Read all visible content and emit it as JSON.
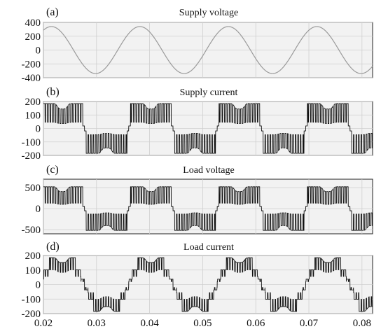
{
  "chart_data": [
    {
      "type": "line",
      "panel_label": "(a)",
      "title": "Supply voltage",
      "xlabel": "",
      "ylabel": "",
      "xlim": [
        0.02,
        0.082
      ],
      "ylim": [
        -400,
        400
      ],
      "yticks": [
        400,
        200,
        0,
        -200,
        -400
      ],
      "grid": true,
      "waveform": "sine",
      "amplitude": 340,
      "frequency_hz": 60,
      "phase_peak_at": 0.0215,
      "color": "#9a9a9a"
    },
    {
      "type": "line",
      "panel_label": "(b)",
      "title": "Supply current",
      "xlabel": "",
      "ylabel": "",
      "xlim": [
        0.02,
        0.082
      ],
      "ylim": [
        -200,
        200
      ],
      "yticks": [
        200,
        100,
        0,
        -100,
        -200
      ],
      "grid": true,
      "waveform": "pwm-square-dip",
      "amplitude": 185,
      "frequency_hz": 60,
      "color": "#111111"
    },
    {
      "type": "line",
      "panel_label": "(c)",
      "title": "Load voltage",
      "xlabel": "",
      "ylabel": "",
      "xlim": [
        0.02,
        0.082
      ],
      "ylim": [
        -600,
        700
      ],
      "yticks": [
        500,
        0,
        -500
      ],
      "grid": true,
      "waveform": "pwm-square-dip",
      "amplitude": 520,
      "frequency_hz": 60,
      "color": "#111111"
    },
    {
      "type": "line",
      "panel_label": "(d)",
      "title": "Load current",
      "xlabel": "",
      "ylabel": "",
      "xlim": [
        0.02,
        0.082
      ],
      "ylim": [
        -200,
        200
      ],
      "yticks": [
        200,
        100,
        0,
        -100,
        -200
      ],
      "xticks": [
        "0.02",
        "0.03",
        "0.04",
        "0.05",
        "0.06",
        "0.07",
        "0.08"
      ],
      "grid": true,
      "waveform": "pwm-stepped",
      "amplitude": 185,
      "frequency_hz": 60,
      "color": "#111111"
    }
  ]
}
